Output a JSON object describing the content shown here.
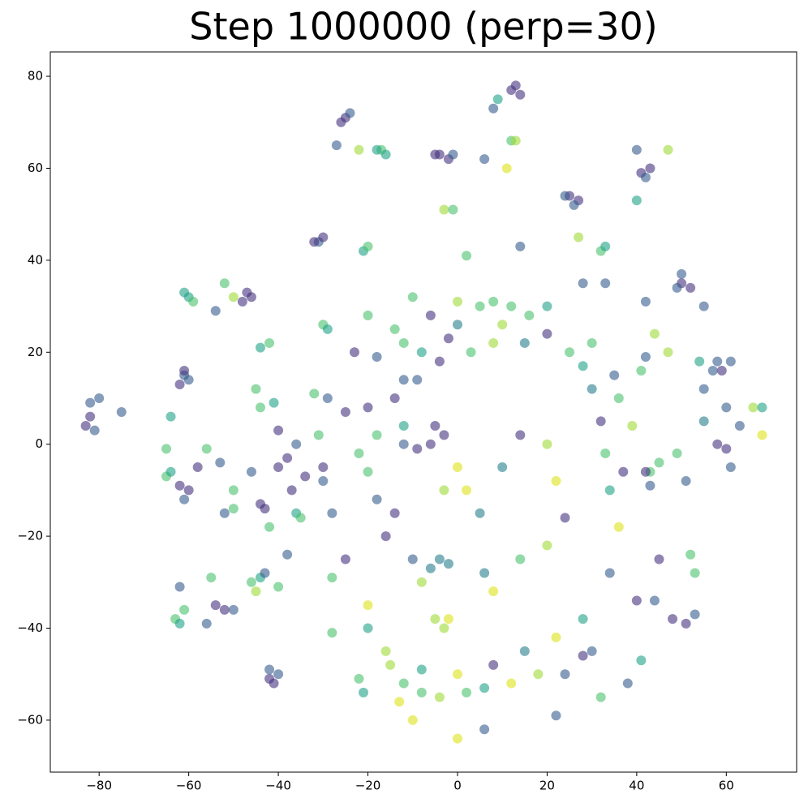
{
  "chart_data": {
    "type": "scatter",
    "title": "Step 1000000 (perp=30)",
    "xlim": [
      -90.9,
      75.7
    ],
    "ylim": [
      -71.3,
      85.3
    ],
    "xticks": [
      {
        "value": -80,
        "label": "−80"
      },
      {
        "value": -60,
        "label": "−60"
      },
      {
        "value": -40,
        "label": "−40"
      },
      {
        "value": -20,
        "label": "−20"
      },
      0,
      20,
      40,
      60
    ],
    "yticks": [
      {
        "value": -60,
        "label": "−60"
      },
      {
        "value": -40,
        "label": "−40"
      },
      {
        "value": -20,
        "label": "−20"
      },
      0,
      20,
      40,
      60,
      80
    ],
    "opacity": 0.6,
    "points": [
      [
        -82,
        6,
        "#46327e"
      ],
      [
        -83,
        4,
        "#46327e"
      ],
      [
        -82,
        9,
        "#365c8d"
      ],
      [
        -80,
        10,
        "#365c8d"
      ],
      [
        -75,
        7,
        "#365c8d"
      ],
      [
        -81,
        3,
        "#365c8d"
      ],
      [
        -61,
        15,
        "#365c8d"
      ],
      [
        -62,
        13,
        "#46327e"
      ],
      [
        -60,
        14,
        "#365c8d"
      ],
      [
        -61,
        16,
        "#46327e"
      ],
      [
        -60,
        32,
        "#1fa187"
      ],
      [
        -59,
        31,
        "#4ac16d"
      ],
      [
        -61,
        33,
        "#1fa187"
      ],
      [
        -54,
        29,
        "#365c8d"
      ],
      [
        -48,
        31,
        "#46327e"
      ],
      [
        -46,
        32,
        "#46327e"
      ],
      [
        -47,
        33,
        "#46327e"
      ],
      [
        -50,
        32,
        "#a0da39"
      ],
      [
        -52,
        35,
        "#4ac16d"
      ],
      [
        -25,
        71,
        "#46327e"
      ],
      [
        -26,
        70,
        "#46327e"
      ],
      [
        -24,
        72,
        "#365c8d"
      ],
      [
        -27,
        65,
        "#365c8d"
      ],
      [
        -17,
        64,
        "#4ac16d"
      ],
      [
        -16,
        63,
        "#1fa187"
      ],
      [
        -18,
        64,
        "#1fa187"
      ],
      [
        -22,
        64,
        "#a0da39"
      ],
      [
        -4,
        63,
        "#46327e"
      ],
      [
        -2,
        62,
        "#46327e"
      ],
      [
        -1,
        63,
        "#365c8d"
      ],
      [
        -5,
        63,
        "#46327e"
      ],
      [
        6,
        62,
        "#365c8d"
      ],
      [
        9,
        75,
        "#1fa187"
      ],
      [
        8,
        73,
        "#365c8d"
      ],
      [
        12,
        77,
        "#46327e"
      ],
      [
        14,
        76,
        "#46327e"
      ],
      [
        13,
        78,
        "#46327e"
      ],
      [
        12,
        66,
        "#4ac16d"
      ],
      [
        13,
        66,
        "#a0da39"
      ],
      [
        11,
        60,
        "#dde318"
      ],
      [
        25,
        54,
        "#46327e"
      ],
      [
        27,
        53,
        "#46327e"
      ],
      [
        26,
        52,
        "#365c8d"
      ],
      [
        24,
        54,
        "#365c8d"
      ],
      [
        41,
        59,
        "#46327e"
      ],
      [
        43,
        60,
        "#46327e"
      ],
      [
        42,
        58,
        "#365c8d"
      ],
      [
        40,
        64,
        "#365c8d"
      ],
      [
        47,
        64,
        "#a0da39"
      ],
      [
        40,
        53,
        "#1fa187"
      ],
      [
        -3,
        51,
        "#a0da39"
      ],
      [
        -1,
        51,
        "#4ac16d"
      ],
      [
        -31,
        44,
        "#365c8d"
      ],
      [
        -30,
        45,
        "#46327e"
      ],
      [
        -32,
        44,
        "#46327e"
      ],
      [
        -21,
        42,
        "#1fa187"
      ],
      [
        -20,
        43,
        "#4ac16d"
      ],
      [
        2,
        41,
        "#4ac16d"
      ],
      [
        14,
        43,
        "#365c8d"
      ],
      [
        32,
        42,
        "#4ac16d"
      ],
      [
        33,
        43,
        "#1fa187"
      ],
      [
        27,
        45,
        "#a0da39"
      ],
      [
        28,
        35,
        "#365c8d"
      ],
      [
        33,
        35,
        "#365c8d"
      ],
      [
        50,
        35,
        "#46327e"
      ],
      [
        52,
        34,
        "#46327e"
      ],
      [
        49,
        34,
        "#365c8d"
      ],
      [
        50,
        37,
        "#365c8d"
      ],
      [
        55,
        30,
        "#365c8d"
      ],
      [
        42,
        31,
        "#365c8d"
      ],
      [
        -30,
        26,
        "#4ac16d"
      ],
      [
        -29,
        25,
        "#1fa187"
      ],
      [
        -44,
        21,
        "#1fa187"
      ],
      [
        -42,
        22,
        "#4ac16d"
      ],
      [
        -45,
        12,
        "#4ac16d"
      ],
      [
        -44,
        8,
        "#4ac16d"
      ],
      [
        -41,
        9,
        "#1fa187"
      ],
      [
        -64,
        6,
        "#1fa187"
      ],
      [
        -65,
        -7,
        "#4ac16d"
      ],
      [
        -64,
        -6,
        "#1fa187"
      ],
      [
        -62,
        -9,
        "#46327e"
      ],
      [
        -60,
        -10,
        "#46327e"
      ],
      [
        -61,
        -12,
        "#365c8d"
      ],
      [
        -58,
        -5,
        "#46327e"
      ],
      [
        -65,
        -1,
        "#4ac16d"
      ],
      [
        -56,
        -1,
        "#4ac16d"
      ],
      [
        -53,
        -4,
        "#365c8d"
      ],
      [
        -50,
        -10,
        "#4ac16d"
      ],
      [
        -50,
        -14,
        "#4ac16d"
      ],
      [
        -52,
        -15,
        "#365c8d"
      ],
      [
        -46,
        -6,
        "#365c8d"
      ],
      [
        -44,
        -13,
        "#46327e"
      ],
      [
        -43,
        -14,
        "#46327e"
      ],
      [
        -42,
        -18,
        "#4ac16d"
      ],
      [
        -38,
        -24,
        "#365c8d"
      ],
      [
        -36,
        -15,
        "#1fa187"
      ],
      [
        -35,
        -16,
        "#4ac16d"
      ],
      [
        -63,
        -38,
        "#4ac16d"
      ],
      [
        -61,
        -36,
        "#4ac16d"
      ],
      [
        -62,
        -39,
        "#1fa187"
      ],
      [
        -62,
        -31,
        "#365c8d"
      ],
      [
        -56,
        -39,
        "#365c8d"
      ],
      [
        -54,
        -35,
        "#46327e"
      ],
      [
        -52,
        -36,
        "#46327e"
      ],
      [
        -50,
        -36,
        "#365c8d"
      ],
      [
        -55,
        -29,
        "#4ac16d"
      ],
      [
        -46,
        -30,
        "#4ac16d"
      ],
      [
        -44,
        -29,
        "#1fa187"
      ],
      [
        -45,
        -32,
        "#a0da39"
      ],
      [
        -43,
        -28,
        "#365c8d"
      ],
      [
        -40,
        -31,
        "#4ac16d"
      ],
      [
        -42,
        -51,
        "#46327e"
      ],
      [
        -42,
        -49,
        "#365c8d"
      ],
      [
        -41,
        -52,
        "#46327e"
      ],
      [
        -40,
        -50,
        "#365c8d"
      ],
      [
        -28,
        -41,
        "#4ac16d"
      ],
      [
        -28,
        -29,
        "#4ac16d"
      ],
      [
        -22,
        -51,
        "#4ac16d"
      ],
      [
        -21,
        -54,
        "#1fa187"
      ],
      [
        58,
        18,
        "#365c8d"
      ],
      [
        59,
        16,
        "#46327e"
      ],
      [
        57,
        16,
        "#365c8d"
      ],
      [
        61,
        18,
        "#365c8d"
      ],
      [
        60,
        8,
        "#365c8d"
      ],
      [
        63,
        4,
        "#365c8d"
      ],
      [
        60,
        -1,
        "#46327e"
      ],
      [
        61,
        -5,
        "#365c8d"
      ],
      [
        58,
        0,
        "#46327e"
      ],
      [
        66,
        8,
        "#a0da39"
      ],
      [
        68,
        8,
        "#1fa187"
      ],
      [
        68,
        2,
        "#dde318"
      ],
      [
        54,
        18,
        "#1fa187"
      ],
      [
        55,
        12,
        "#365c8d"
      ],
      [
        55,
        5,
        "#277f8e"
      ],
      [
        51,
        -8,
        "#365c8d"
      ],
      [
        49,
        -2,
        "#4ac16d"
      ],
      [
        43,
        -6,
        "#4ac16d"
      ],
      [
        43,
        -9,
        "#365c8d"
      ],
      [
        42,
        -6,
        "#46327e"
      ],
      [
        37,
        -6,
        "#46327e"
      ],
      [
        39,
        4,
        "#a0da39"
      ],
      [
        45,
        -4,
        "#4ac16d"
      ],
      [
        41,
        16,
        "#4ac16d"
      ],
      [
        42,
        19,
        "#365c8d"
      ],
      [
        44,
        24,
        "#a0da39"
      ],
      [
        47,
        20,
        "#a0da39"
      ],
      [
        52,
        -24,
        "#4ac16d"
      ],
      [
        53,
        -28,
        "#4ac16d"
      ],
      [
        45,
        -25,
        "#46327e"
      ],
      [
        40,
        -34,
        "#46327e"
      ],
      [
        44,
        -34,
        "#365c8d"
      ],
      [
        48,
        -38,
        "#46327e"
      ],
      [
        51,
        -39,
        "#46327e"
      ],
      [
        53,
        -37,
        "#365c8d"
      ],
      [
        41,
        -47,
        "#1fa187"
      ],
      [
        38,
        -52,
        "#365c8d"
      ],
      [
        32,
        -55,
        "#4ac16d"
      ],
      [
        -29,
        10,
        "#365c8d"
      ],
      [
        -25,
        7,
        "#46327e"
      ],
      [
        -20,
        8,
        "#46327e"
      ],
      [
        -14,
        10,
        "#46327e"
      ],
      [
        -9,
        14,
        "#365c8d"
      ],
      [
        -4,
        18,
        "#46327e"
      ],
      [
        3,
        20,
        "#4ac16d"
      ],
      [
        8,
        22,
        "#a0da39"
      ],
      [
        15,
        22,
        "#277f8e"
      ],
      [
        20,
        24,
        "#46327e"
      ],
      [
        25,
        20,
        "#4ac16d"
      ],
      [
        28,
        17,
        "#1fa187"
      ],
      [
        30,
        12,
        "#277f8e"
      ],
      [
        32,
        5,
        "#46327e"
      ],
      [
        33,
        -2,
        "#4ac16d"
      ],
      [
        34,
        -10,
        "#1fa187"
      ],
      [
        36,
        -18,
        "#dde318"
      ],
      [
        34,
        -28,
        "#365c8d"
      ],
      [
        28,
        -38,
        "#1fa187"
      ],
      [
        22,
        -42,
        "#dde318"
      ],
      [
        15,
        -45,
        "#277f8e"
      ],
      [
        8,
        -48,
        "#46327e"
      ],
      [
        0,
        -50,
        "#dde318"
      ],
      [
        -8,
        -49,
        "#1fa187"
      ],
      [
        -16,
        -45,
        "#a0da39"
      ],
      [
        -20,
        -35,
        "#dde318"
      ],
      [
        -25,
        -25,
        "#46327e"
      ],
      [
        -28,
        -15,
        "#365c8d"
      ],
      [
        -30,
        -5,
        "#46327e"
      ],
      [
        -31,
        2,
        "#4ac16d"
      ],
      [
        -18,
        2,
        "#4ac16d"
      ],
      [
        -12,
        4,
        "#1fa187"
      ],
      [
        -5,
        4,
        "#46327e"
      ],
      [
        -3,
        2,
        "#46327e"
      ],
      [
        -6,
        0,
        "#46327e"
      ],
      [
        -9,
        -1,
        "#46327e"
      ],
      [
        -12,
        0,
        "#365c8d"
      ],
      [
        0,
        -5,
        "#dde318"
      ],
      [
        2,
        -10,
        "#dde318"
      ],
      [
        -3,
        -10,
        "#a0da39"
      ],
      [
        5,
        -15,
        "#277f8e"
      ],
      [
        10,
        -5,
        "#277f8e"
      ],
      [
        14,
        2,
        "#46327e"
      ],
      [
        20,
        0,
        "#a0da39"
      ],
      [
        22,
        -8,
        "#dde318"
      ],
      [
        24,
        -16,
        "#46327e"
      ],
      [
        20,
        -22,
        "#a0da39"
      ],
      [
        14,
        -25,
        "#4ac16d"
      ],
      [
        6,
        -28,
        "#277f8e"
      ],
      [
        -2,
        -26,
        "#277f8e"
      ],
      [
        -4,
        -25,
        "#277f8e"
      ],
      [
        -6,
        -27,
        "#277f8e"
      ],
      [
        -10,
        -25,
        "#365c8d"
      ],
      [
        -16,
        -20,
        "#46327e"
      ],
      [
        -18,
        -12,
        "#365c8d"
      ],
      [
        -20,
        -6,
        "#4ac16d"
      ],
      [
        -22,
        -2,
        "#4ac16d"
      ],
      [
        -14,
        -15,
        "#46327e"
      ],
      [
        8,
        -32,
        "#dde318"
      ],
      [
        -8,
        -30,
        "#a0da39"
      ],
      [
        -15,
        -48,
        "#a0da39"
      ],
      [
        -12,
        -52,
        "#4ac16d"
      ],
      [
        -8,
        -54,
        "#4ac16d"
      ],
      [
        -4,
        -55,
        "#a0da39"
      ],
      [
        2,
        -54,
        "#4ac16d"
      ],
      [
        6,
        -53,
        "#1fa187"
      ],
      [
        12,
        -52,
        "#dde318"
      ],
      [
        18,
        -50,
        "#a0da39"
      ],
      [
        24,
        -50,
        "#365c8d"
      ],
      [
        28,
        -46,
        "#46327e"
      ],
      [
        30,
        -45,
        "#365c8d"
      ],
      [
        -13,
        -56,
        "#dde318"
      ],
      [
        -10,
        -60,
        "#dde318"
      ],
      [
        0,
        -64,
        "#dde318"
      ],
      [
        6,
        -62,
        "#365c8d"
      ],
      [
        22,
        -59,
        "#365c8d"
      ],
      [
        -20,
        -40,
        "#1fa187"
      ],
      [
        -2,
        -38,
        "#dde318"
      ],
      [
        -5,
        -38,
        "#a0da39"
      ],
      [
        -3,
        -40,
        "#a0da39"
      ],
      [
        -40,
        -5,
        "#46327e"
      ],
      [
        -40,
        3,
        "#46327e"
      ],
      [
        -38,
        -3,
        "#46327e"
      ],
      [
        -36,
        0,
        "#365c8d"
      ],
      [
        -34,
        -7,
        "#46327e"
      ],
      [
        -30,
        -8,
        "#365c8d"
      ],
      [
        -32,
        11,
        "#4ac16d"
      ],
      [
        -37,
        -10,
        "#46327e"
      ],
      [
        -23,
        20,
        "#46327e"
      ],
      [
        -18,
        19,
        "#365c8d"
      ],
      [
        -12,
        14,
        "#365c8d"
      ],
      [
        -8,
        20,
        "#1fa187"
      ],
      [
        -14,
        25,
        "#4ac16d"
      ],
      [
        -6,
        28,
        "#46327e"
      ],
      [
        0,
        26,
        "#277f8e"
      ],
      [
        -2,
        23,
        "#46327e"
      ],
      [
        5,
        30,
        "#4ac16d"
      ],
      [
        10,
        26,
        "#a0da39"
      ],
      [
        16,
        28,
        "#4ac16d"
      ],
      [
        -20,
        28,
        "#4ac16d"
      ],
      [
        -10,
        32,
        "#4ac16d"
      ],
      [
        0,
        31,
        "#a0da39"
      ],
      [
        8,
        31,
        "#4ac16d"
      ],
      [
        12,
        30,
        "#4ac16d"
      ],
      [
        20,
        30,
        "#1fa187"
      ],
      [
        -12,
        22,
        "#4ac16d"
      ],
      [
        30,
        22,
        "#4ac16d"
      ],
      [
        35,
        15,
        "#365c8d"
      ],
      [
        36,
        10,
        "#4ac16d"
      ]
    ]
  }
}
